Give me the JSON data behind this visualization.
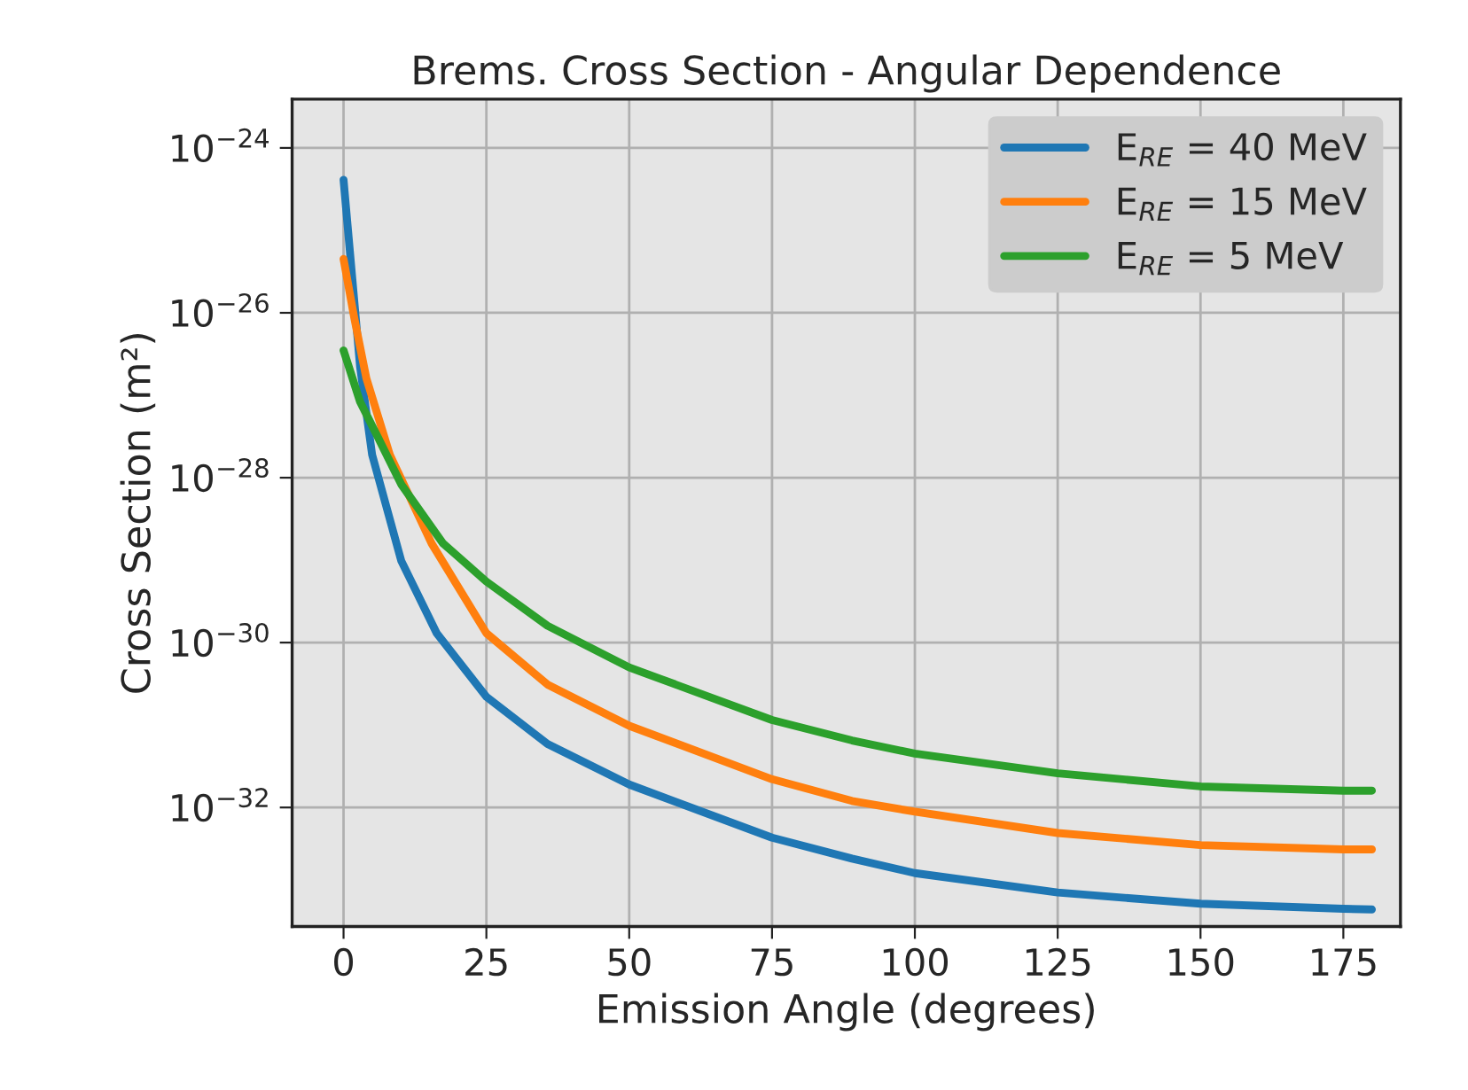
{
  "chart_data": {
    "type": "line",
    "title": "Brems. Cross Section - Angular Dependence",
    "xlabel": "Emission Angle (degrees)",
    "ylabel": "Cross Section (m²)",
    "series": [
      {
        "name": "E$_{RE}$ = 40 MeV",
        "color": "#1f77b4",
        "x": [
          0,
          2.9,
          5,
          10.1,
          16.3,
          25,
          35.7,
          50,
          75,
          89,
          100,
          125,
          150,
          175,
          180
        ],
        "values": [
          4.1e-25,
          2.2e-27,
          1.9e-28,
          9.8e-30,
          1.3e-30,
          2.2e-31,
          5.9e-32,
          1.9e-32,
          4.3e-33,
          2.4e-33,
          1.6e-33,
          9.3e-34,
          6.8e-34,
          5.9e-34,
          5.8e-34
        ]
      },
      {
        "name": "E$_{RE}$ = 15 MeV",
        "color": "#ff7f0e",
        "x": [
          0,
          1.9,
          4,
          8.1,
          15.4,
          25,
          35.7,
          50,
          75,
          89,
          100,
          125,
          150,
          175,
          180
        ],
        "values": [
          4.5e-26,
          8.5e-27,
          1.6e-27,
          1.9e-28,
          1.6e-29,
          1.3e-30,
          3.1e-31,
          9.8e-32,
          2.2e-32,
          1.2e-32,
          8.9e-33,
          4.9e-33,
          3.5e-33,
          3.1e-33,
          3.1e-33
        ]
      },
      {
        "name": "E$_{RE}$ = 5 MeV",
        "color": "#2ca02c",
        "x": [
          0,
          2.9,
          6,
          10.1,
          17.4,
          25,
          35.7,
          50,
          75,
          89,
          100,
          125,
          150,
          175,
          180
        ],
        "values": [
          3.5e-27,
          8.3e-28,
          3.1e-28,
          8.3e-29,
          1.6e-29,
          5.5e-30,
          1.6e-30,
          5e-31,
          1.15e-31,
          6.5e-32,
          4.5e-32,
          2.6e-32,
          1.8e-32,
          1.6e-32,
          1.6e-32
        ]
      }
    ],
    "log": "y",
    "xlim": [
      -9,
      185
    ],
    "ylim": [
      3.6e-34,
      3.9e-24
    ],
    "xticks": [
      0,
      25,
      50,
      75,
      100,
      125,
      150,
      175
    ],
    "yticks": [
      {
        "value": 1e-32,
        "label": "10$^{−32}$"
      },
      {
        "value": 1e-30,
        "label": "10$^{−30}$"
      },
      {
        "value": 1e-28,
        "label": "10$^{−28}$"
      },
      {
        "value": 1e-26,
        "label": "10$^{−26}$"
      },
      {
        "value": 1e-24,
        "label": "10$^{−24}$"
      }
    ],
    "grid": true,
    "legend": "top right",
    "marker": "none",
    "line_style": "solid"
  }
}
